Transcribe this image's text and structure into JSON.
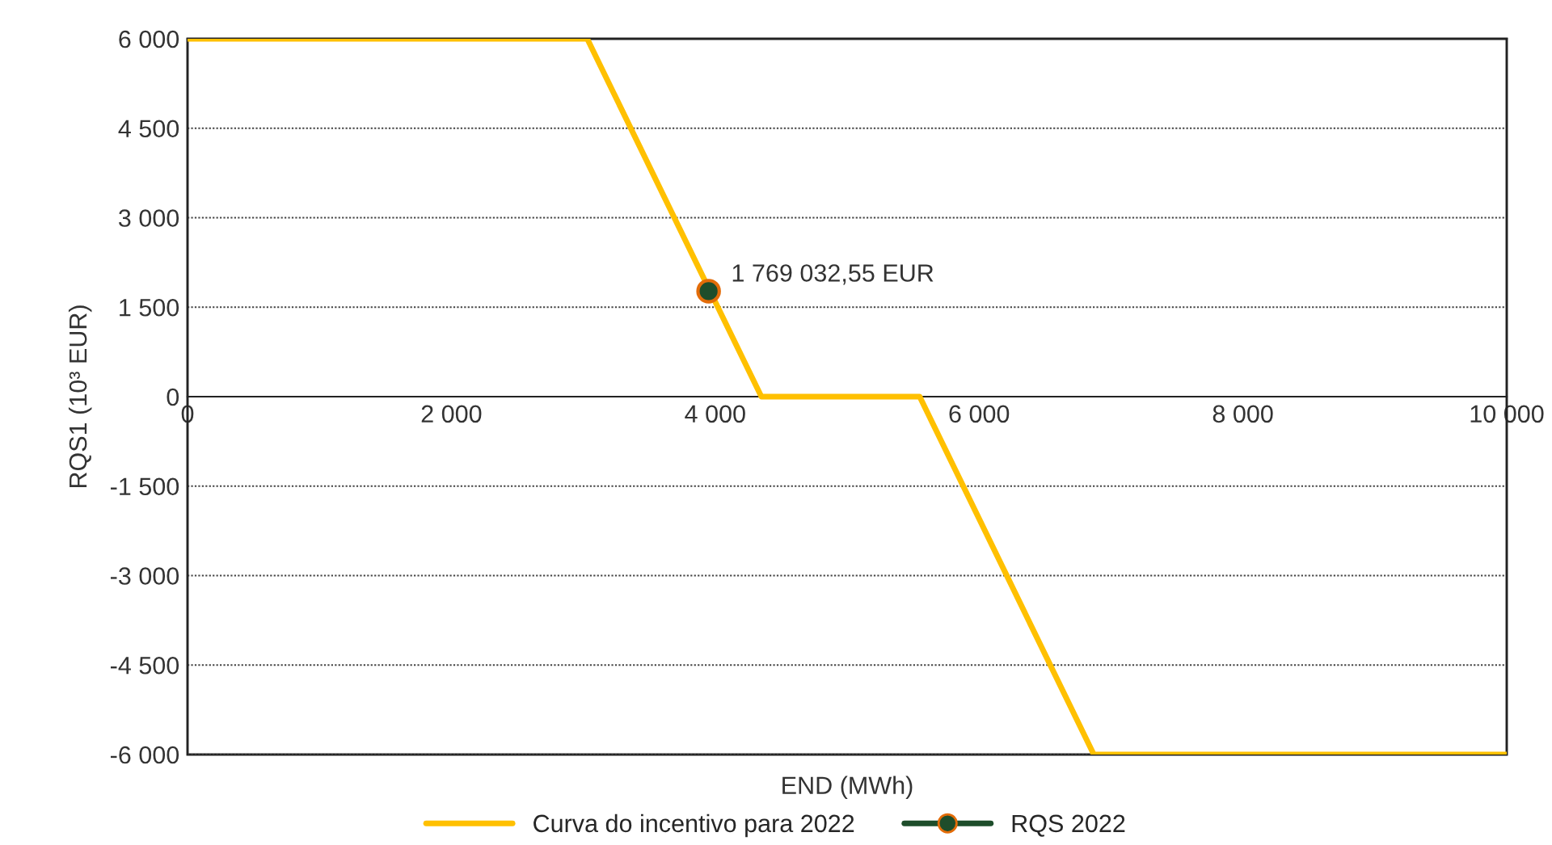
{
  "chart_data": {
    "type": "line",
    "xlabel": "END (MWh)",
    "ylabel": "RQS1 (10³ EUR)",
    "series": [
      {
        "name": "Curva do incentivo para 2022",
        "color": "#ffc000",
        "x": [
          0,
          3030,
          4350,
          5550,
          6870,
          10000
        ],
        "values": [
          6000,
          6000,
          0,
          0,
          -6000,
          -6000
        ],
        "marker": "none"
      },
      {
        "name": "RQS 2022",
        "type": "scatter",
        "color": "#1e4d2b",
        "x": [
          3950
        ],
        "values": [
          1769
        ],
        "marker": "circle"
      }
    ],
    "annotations": [
      {
        "text": "1 769 032,55 EUR",
        "x": 3950,
        "y": 1769
      }
    ],
    "xlim": [
      0,
      10000
    ],
    "xticks": [
      {
        "value": 0,
        "label": "0"
      },
      {
        "value": 2000,
        "label": "2 000"
      },
      {
        "value": 4000,
        "label": "4 000"
      },
      {
        "value": 6000,
        "label": "6 000"
      },
      {
        "value": 8000,
        "label": "8 000"
      },
      {
        "value": 10000,
        "label": "10 000"
      }
    ],
    "ylim": [
      -6000,
      6000
    ],
    "yticks": [
      {
        "value": -6000,
        "label": "-6 000"
      },
      {
        "value": -4500,
        "label": "-4 500"
      },
      {
        "value": -3000,
        "label": "-3 000"
      },
      {
        "value": -1500,
        "label": "-1 500"
      },
      {
        "value": 0,
        "label": "0"
      },
      {
        "value": 1500,
        "label": "1 500"
      },
      {
        "value": 3000,
        "label": "3 000"
      },
      {
        "value": 4500,
        "label": "4 500"
      },
      {
        "value": 6000,
        "label": "6 000"
      }
    ],
    "grid": "y",
    "legend": "bottom",
    "line_style": "solid"
  }
}
